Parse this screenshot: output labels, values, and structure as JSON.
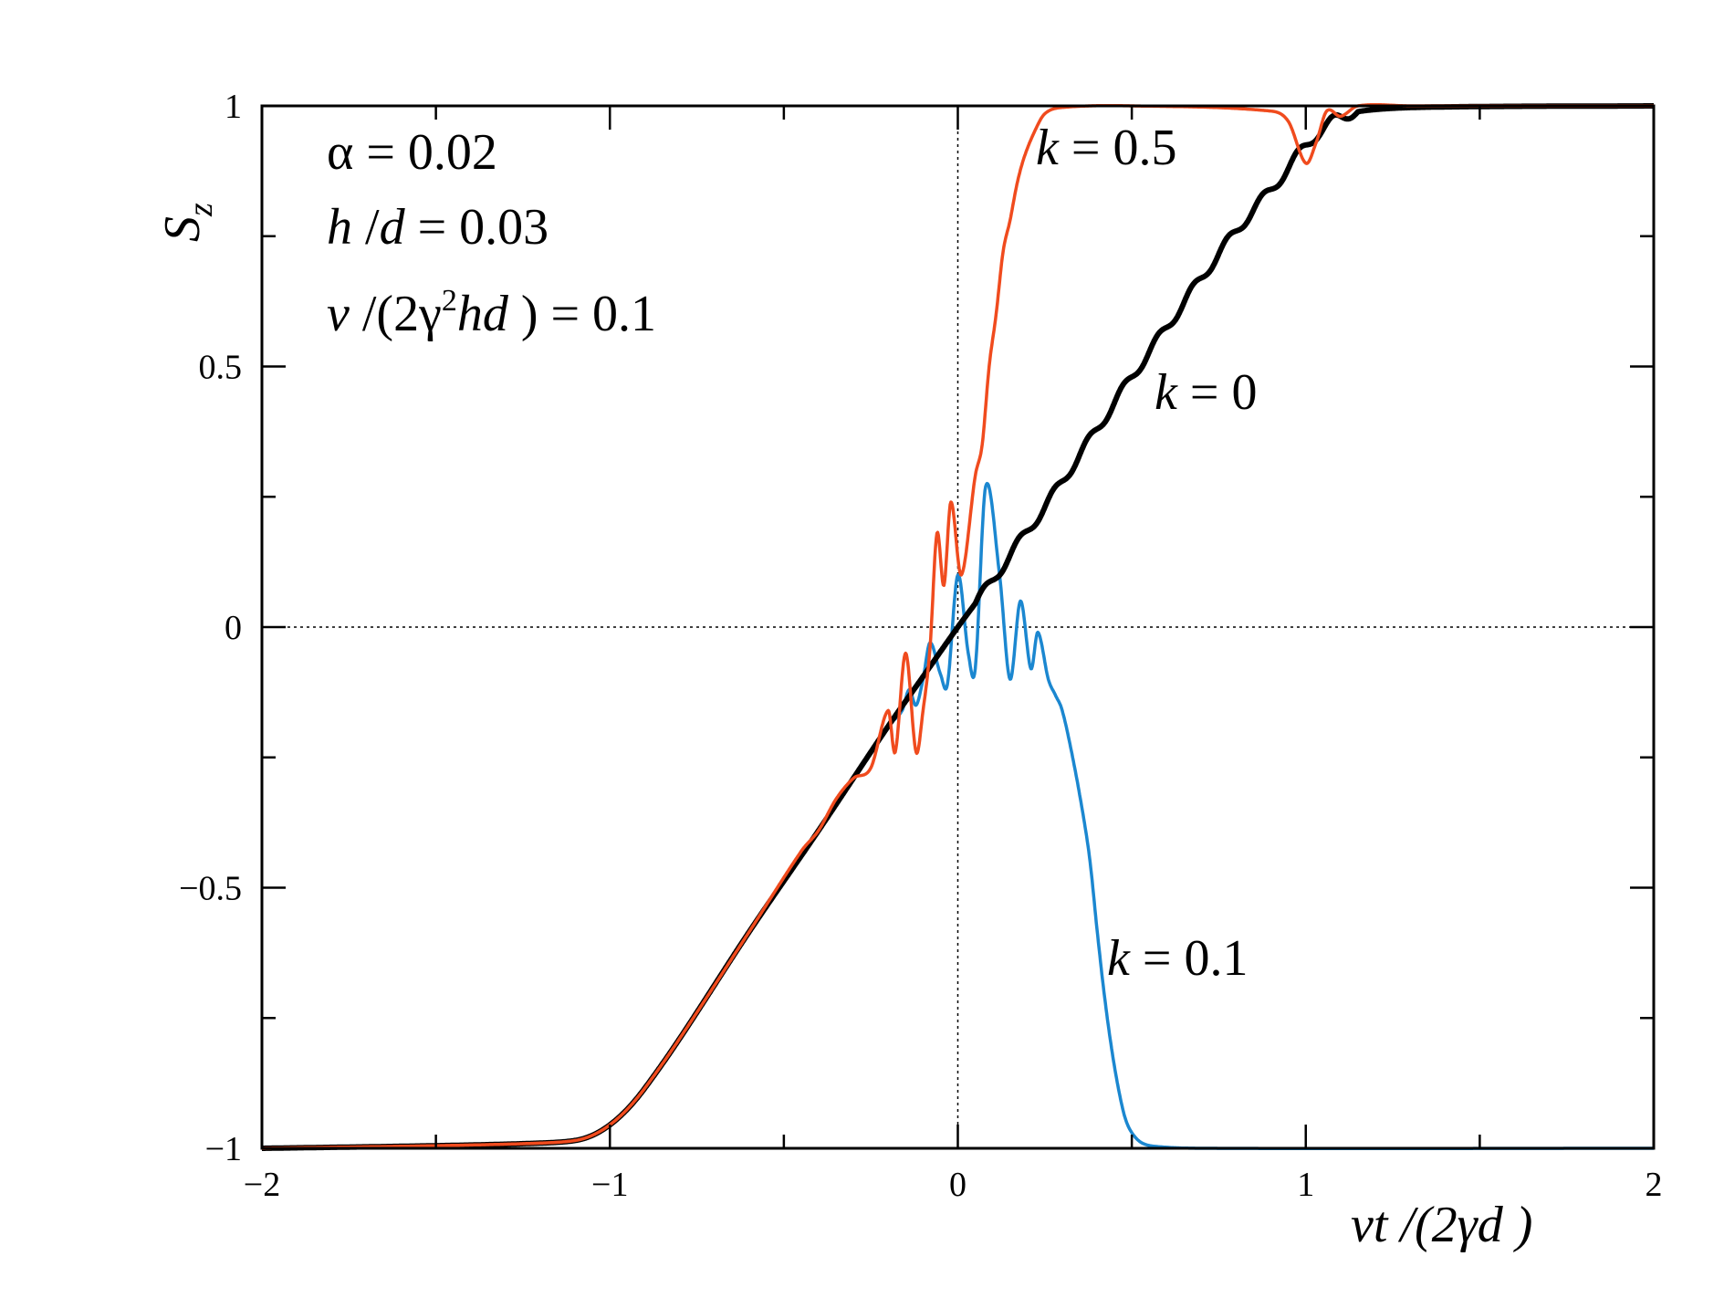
{
  "chart_data": {
    "type": "line",
    "xlabel": "vt /(2γd )",
    "ylabel": "S",
    "ylabel_sub": "z",
    "xlim": [
      -2,
      2
    ],
    "ylim": [
      -1,
      1
    ],
    "x_ticks": [
      {
        "value": -2,
        "label": "−2"
      },
      {
        "value": -1,
        "label": "−1"
      },
      {
        "value": 0,
        "label": "0"
      },
      {
        "value": 1,
        "label": "1"
      },
      {
        "value": 2,
        "label": "2"
      }
    ],
    "y_ticks": [
      {
        "value": -1,
        "label": "−1"
      },
      {
        "value": -0.5,
        "label": "−0.5"
      },
      {
        "value": 0,
        "label": "0"
      },
      {
        "value": 0.5,
        "label": "0.5"
      },
      {
        "value": 1,
        "label": "1"
      }
    ],
    "x_minor_step": 0.5,
    "y_minor_step": 0.25,
    "reference_lines": {
      "x": 0,
      "y": 0,
      "style": "dotted"
    },
    "grid": false,
    "annotations": {
      "alpha": {
        "sym": "α",
        "rest": " = 0.02"
      },
      "hd": {
        "h": "h",
        "mid": " /",
        "d": "d",
        "rest": "  = 0.03"
      },
      "vel": {
        "v": "v",
        "a": " /(2γ",
        "sup": "2",
        "hd": "hd",
        "rest": " ) = 0.1"
      }
    },
    "series": [
      {
        "key": "k0",
        "color": "#000000",
        "label_var": "k",
        "label_rest": "  = 0",
        "points": [
          [
            -2,
            -1
          ],
          [
            -1.5,
            -0.995
          ],
          [
            -1.2,
            -0.99
          ],
          [
            -1.1,
            -0.985
          ],
          [
            -1.05,
            -0.975
          ],
          [
            -1.0,
            -0.955
          ],
          [
            -0.95,
            -0.925
          ],
          [
            -0.9,
            -0.885
          ],
          [
            -0.8,
            -0.79
          ],
          [
            -0.6,
            -0.585
          ],
          [
            -0.4,
            -0.39
          ],
          [
            -0.2,
            -0.19
          ],
          [
            -0.1,
            -0.095
          ],
          [
            0,
            0
          ],
          [
            0.1,
            0.09
          ],
          [
            0.2,
            0.185
          ],
          [
            0.25,
            0.23
          ],
          [
            0.3,
            0.28
          ],
          [
            0.4,
            0.38
          ],
          [
            0.5,
            0.48
          ],
          [
            0.6,
            0.575
          ],
          [
            0.7,
            0.67
          ],
          [
            0.8,
            0.76
          ],
          [
            0.9,
            0.84
          ],
          [
            0.95,
            0.88
          ],
          [
            1.0,
            0.925
          ],
          [
            1.05,
            0.955
          ],
          [
            1.1,
            0.98
          ],
          [
            1.2,
            0.993
          ],
          [
            1.4,
            0.998
          ],
          [
            2,
            1
          ]
        ],
        "wiggle": {
          "from": 0.05,
          "to": 1.15,
          "amp": 0.01,
          "period": 0.1
        }
      },
      {
        "key": "k01",
        "color": "#1b87d0",
        "label_var": "k",
        "label_rest": "  = 0.1",
        "points": [
          [
            -2,
            -1
          ],
          [
            -1.5,
            -0.995
          ],
          [
            -1.2,
            -0.99
          ],
          [
            -1.1,
            -0.985
          ],
          [
            -1.05,
            -0.975
          ],
          [
            -1.0,
            -0.955
          ],
          [
            -0.95,
            -0.925
          ],
          [
            -0.9,
            -0.885
          ],
          [
            -0.8,
            -0.79
          ],
          [
            -0.6,
            -0.585
          ],
          [
            -0.4,
            -0.39
          ],
          [
            -0.3,
            -0.29
          ],
          [
            -0.2,
            -0.19
          ],
          [
            -0.16,
            -0.16
          ],
          [
            -0.14,
            -0.12
          ],
          [
            -0.12,
            -0.15
          ],
          [
            -0.1,
            -0.1
          ],
          [
            -0.08,
            -0.03
          ],
          [
            -0.05,
            -0.09
          ],
          [
            -0.03,
            -0.11
          ],
          [
            0,
            0.1
          ],
          [
            0.03,
            -0.05
          ],
          [
            0.05,
            -0.08
          ],
          [
            0.08,
            0.27
          ],
          [
            0.12,
            0.1
          ],
          [
            0.15,
            -0.1
          ],
          [
            0.18,
            0.05
          ],
          [
            0.21,
            -0.08
          ],
          [
            0.23,
            -0.01
          ],
          [
            0.26,
            -0.1
          ],
          [
            0.28,
            -0.13
          ],
          [
            0.3,
            -0.16
          ],
          [
            0.33,
            -0.25
          ],
          [
            0.36,
            -0.36
          ],
          [
            0.38,
            -0.45
          ],
          [
            0.4,
            -0.58
          ],
          [
            0.42,
            -0.7
          ],
          [
            0.44,
            -0.8
          ],
          [
            0.46,
            -0.88
          ],
          [
            0.48,
            -0.94
          ],
          [
            0.5,
            -0.97
          ],
          [
            0.53,
            -0.99
          ],
          [
            0.58,
            -0.997
          ],
          [
            0.7,
            -1
          ],
          [
            2,
            -1
          ]
        ]
      },
      {
        "key": "k05",
        "color": "#f04b1e",
        "label_var": "k",
        "label_rest": "  = 0.5",
        "points": [
          [
            -2,
            -1
          ],
          [
            -1.5,
            -0.995
          ],
          [
            -1.2,
            -0.99
          ],
          [
            -1.1,
            -0.985
          ],
          [
            -1.05,
            -0.975
          ],
          [
            -1.0,
            -0.955
          ],
          [
            -0.95,
            -0.925
          ],
          [
            -0.9,
            -0.885
          ],
          [
            -0.8,
            -0.79
          ],
          [
            -0.6,
            -0.585
          ],
          [
            -0.45,
            -0.43
          ],
          [
            -0.4,
            -0.39
          ],
          [
            -0.35,
            -0.33
          ],
          [
            -0.3,
            -0.29
          ],
          [
            -0.25,
            -0.27
          ],
          [
            -0.2,
            -0.16
          ],
          [
            -0.18,
            -0.24
          ],
          [
            -0.15,
            -0.05
          ],
          [
            -0.12,
            -0.24
          ],
          [
            -0.1,
            -0.16
          ],
          [
            -0.08,
            -0.04
          ],
          [
            -0.06,
            0.18
          ],
          [
            -0.04,
            0.08
          ],
          [
            -0.02,
            0.24
          ],
          [
            0.01,
            0.1
          ],
          [
            0.05,
            0.29
          ],
          [
            0.07,
            0.35
          ],
          [
            0.09,
            0.5
          ],
          [
            0.11,
            0.6
          ],
          [
            0.13,
            0.72
          ],
          [
            0.15,
            0.78
          ],
          [
            0.17,
            0.85
          ],
          [
            0.19,
            0.9
          ],
          [
            0.22,
            0.95
          ],
          [
            0.25,
            0.985
          ],
          [
            0.3,
            0.997
          ],
          [
            0.5,
            1.0
          ],
          [
            0.9,
            0.99
          ],
          [
            0.95,
            0.97
          ],
          [
            1.0,
            0.89
          ],
          [
            1.03,
            0.93
          ],
          [
            1.06,
            0.99
          ],
          [
            1.1,
            0.98
          ],
          [
            1.15,
            1.0
          ],
          [
            1.3,
            1.0
          ],
          [
            2,
            1
          ]
        ]
      }
    ]
  }
}
